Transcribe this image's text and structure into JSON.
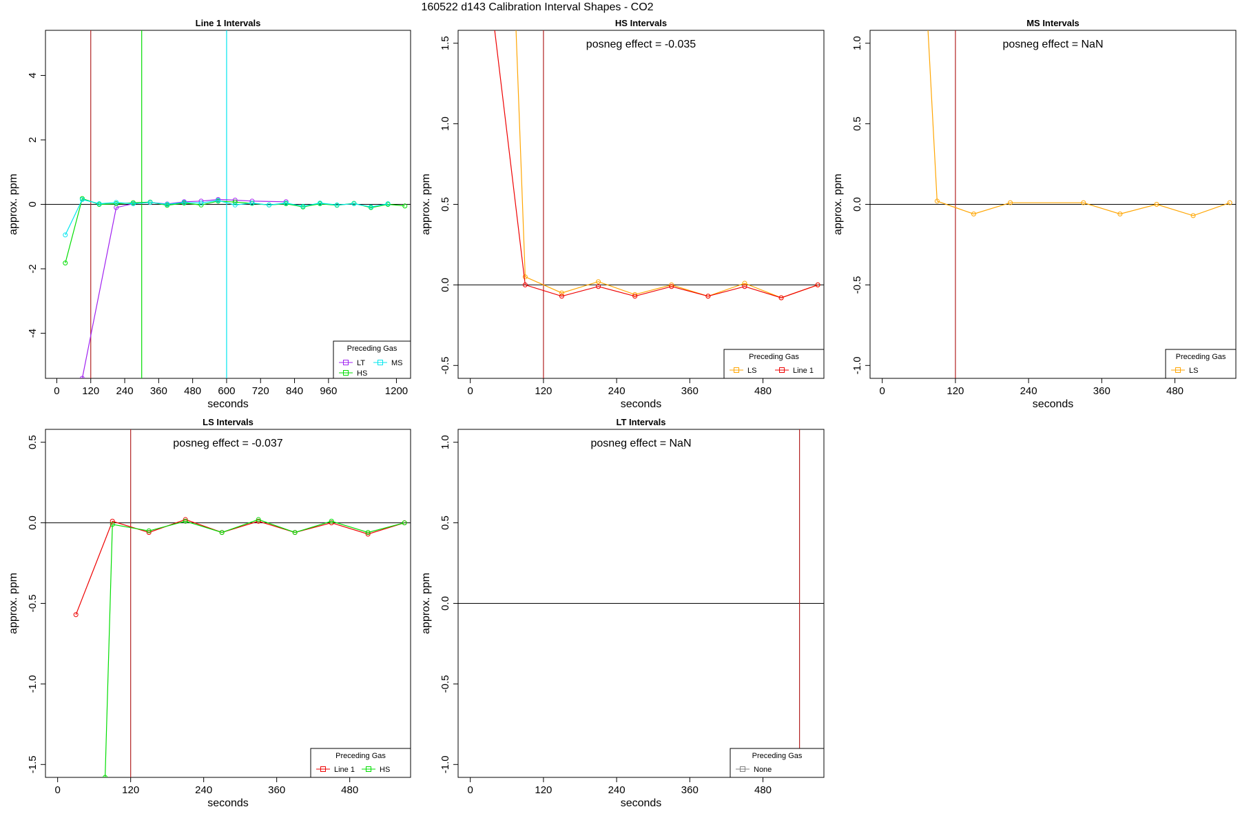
{
  "figure_title": "160522  d143   Calibration Interval Shapes - CO2",
  "colors": {
    "LT": "#a020f0",
    "HS": "#00dd00",
    "MS": "#00e5ee",
    "LS": "#ffa500",
    "Line 1": "#ee0000",
    "None": "#808080",
    "marker": "#b22222",
    "text": "#000000"
  },
  "chart_data": [
    {
      "type": "line",
      "title": "Line 1 Intervals",
      "xlabel": "seconds",
      "ylabel": "approx. ppm",
      "xlim": [
        -40,
        1250
      ],
      "ylim": [
        -5.4,
        5.4
      ],
      "xticks": [
        0,
        120,
        240,
        360,
        480,
        600,
        720,
        840,
        960,
        1200
      ],
      "yticks": [
        -4,
        -2,
        0,
        2,
        4
      ],
      "vlines": [
        {
          "x": 120,
          "color": "#b22222"
        },
        {
          "x": 300,
          "color": "#00dd00"
        },
        {
          "x": 600,
          "color": "#00e5ee"
        }
      ],
      "legend": {
        "title": "Preceding Gas",
        "position": "bottom-right",
        "entries": [
          "LT",
          "HS",
          "MS"
        ]
      },
      "series": [
        {
          "name": "LT",
          "color": "#a020f0",
          "x": [
            90,
            210,
            270,
            330,
            390,
            450,
            510,
            570,
            630,
            690,
            810
          ],
          "y": [
            -5.4,
            -0.1,
            0.02,
            0.06,
            0.01,
            0.08,
            0.1,
            0.15,
            0.13,
            0.1,
            0.08
          ]
        },
        {
          "name": "HS",
          "color": "#00dd00",
          "x": [
            30,
            90,
            150,
            210,
            270,
            330,
            390,
            450,
            510,
            570,
            630,
            690,
            750,
            810,
            870,
            930,
            990,
            1050,
            1110,
            1170,
            1230
          ],
          "y": [
            -1.82,
            0.18,
            0.0,
            0.02,
            0.05,
            0.07,
            -0.03,
            0.04,
            -0.02,
            0.1,
            0.07,
            0.03,
            -0.02,
            0.02,
            -0.08,
            0.02,
            -0.03,
            0.03,
            -0.1,
            0.0,
            -0.05
          ]
        },
        {
          "name": "MS",
          "color": "#00e5ee",
          "x": [
            30,
            90,
            150,
            210,
            270,
            330,
            390,
            450,
            510,
            570,
            630,
            690,
            750,
            810,
            870,
            930,
            990,
            1050,
            1110,
            1170
          ],
          "y": [
            -0.95,
            0.15,
            0.02,
            0.06,
            0.02,
            0.06,
            0.0,
            0.06,
            0.04,
            0.12,
            -0.02,
            0.04,
            -0.02,
            0.04,
            -0.06,
            0.04,
            -0.02,
            0.02,
            -0.08,
            0.02
          ]
        }
      ]
    },
    {
      "type": "line",
      "title": "HS Intervals",
      "annotation": "posneg effect = -0.035",
      "xlabel": "seconds",
      "ylabel": "approx. ppm",
      "xlim": [
        -20,
        580
      ],
      "ylim": [
        -0.58,
        1.58
      ],
      "xticks": [
        0,
        120,
        240,
        360,
        480
      ],
      "yticks": [
        -0.5,
        0.0,
        0.5,
        1.0,
        1.5
      ],
      "vlines": [
        {
          "x": 120,
          "color": "#b22222"
        }
      ],
      "legend": {
        "title": "Preceding Gas",
        "position": "bottom-right",
        "entries": [
          "LS",
          "Line 1"
        ]
      },
      "series": [
        {
          "name": "LS",
          "color": "#ffa500",
          "x": [
            75,
            90,
            150,
            210,
            270,
            330,
            390,
            450,
            510,
            570
          ],
          "y": [
            1.58,
            0.05,
            -0.05,
            0.02,
            -0.06,
            0.0,
            -0.07,
            0.01,
            -0.08,
            0.0
          ]
        },
        {
          "name": "Line 1",
          "color": "#ee0000",
          "x": [
            40,
            90,
            150,
            210,
            270,
            330,
            390,
            450,
            510,
            570
          ],
          "y": [
            1.58,
            0.0,
            -0.07,
            -0.01,
            -0.07,
            -0.01,
            -0.07,
            -0.01,
            -0.08,
            0.0
          ]
        }
      ]
    },
    {
      "type": "line",
      "title": "MS Intervals",
      "annotation": "posneg effect = NaN",
      "xlabel": "seconds",
      "ylabel": "approx. ppm",
      "xlim": [
        -20,
        580
      ],
      "ylim": [
        -1.08,
        1.08
      ],
      "xticks": [
        0,
        120,
        240,
        360,
        480
      ],
      "yticks": [
        -1.0,
        -0.5,
        0.0,
        0.5,
        1.0
      ],
      "vlines": [
        {
          "x": 120,
          "color": "#b22222"
        }
      ],
      "legend": {
        "title": "Preceding Gas",
        "position": "bottom-right",
        "entries": [
          "LS"
        ]
      },
      "series": [
        {
          "name": "LS",
          "color": "#ffa500",
          "x": [
            75,
            90,
            150,
            210,
            330,
            390,
            450,
            510,
            570
          ],
          "y": [
            1.08,
            0.02,
            -0.06,
            0.01,
            0.01,
            -0.06,
            0.0,
            -0.07,
            0.01
          ]
        }
      ]
    },
    {
      "type": "line",
      "title": "LS Intervals",
      "annotation": "posneg effect = -0.037",
      "xlabel": "seconds",
      "ylabel": "approx. ppm",
      "xlim": [
        -20,
        580
      ],
      "ylim": [
        -1.58,
        0.58
      ],
      "xticks": [
        0,
        120,
        240,
        360,
        480
      ],
      "yticks": [
        -1.5,
        -1.0,
        -0.5,
        0.0,
        0.5
      ],
      "vlines": [
        {
          "x": 120,
          "color": "#b22222"
        }
      ],
      "legend": {
        "title": "Preceding Gas",
        "position": "bottom-right",
        "entries": [
          "Line 1",
          "HS"
        ]
      },
      "series": [
        {
          "name": "Line 1",
          "color": "#ee0000",
          "x": [
            30,
            90,
            150,
            210,
            270,
            330,
            390,
            450,
            510,
            570
          ],
          "y": [
            -0.57,
            0.01,
            -0.06,
            0.02,
            -0.06,
            0.01,
            -0.06,
            0.0,
            -0.07,
            0.0
          ]
        },
        {
          "name": "HS",
          "color": "#00dd00",
          "x": [
            78,
            90,
            150,
            210,
            270,
            330,
            390,
            450,
            510,
            570
          ],
          "y": [
            -1.58,
            -0.01,
            -0.05,
            0.01,
            -0.06,
            0.02,
            -0.06,
            0.01,
            -0.06,
            0.0
          ]
        }
      ]
    },
    {
      "type": "line",
      "title": "LT Intervals",
      "annotation": "posneg effect = NaN",
      "xlabel": "seconds",
      "ylabel": "approx. ppm",
      "xlim": [
        -20,
        580
      ],
      "ylim": [
        -1.08,
        1.08
      ],
      "xticks": [
        0,
        120,
        240,
        360,
        480
      ],
      "yticks": [
        -1.0,
        -0.5,
        0.0,
        0.5,
        1.0
      ],
      "vlines": [
        {
          "x": 540,
          "color": "#b22222"
        }
      ],
      "legend": {
        "title": "Preceding Gas",
        "position": "bottom-right",
        "entries": [
          "None"
        ]
      },
      "series": []
    }
  ]
}
